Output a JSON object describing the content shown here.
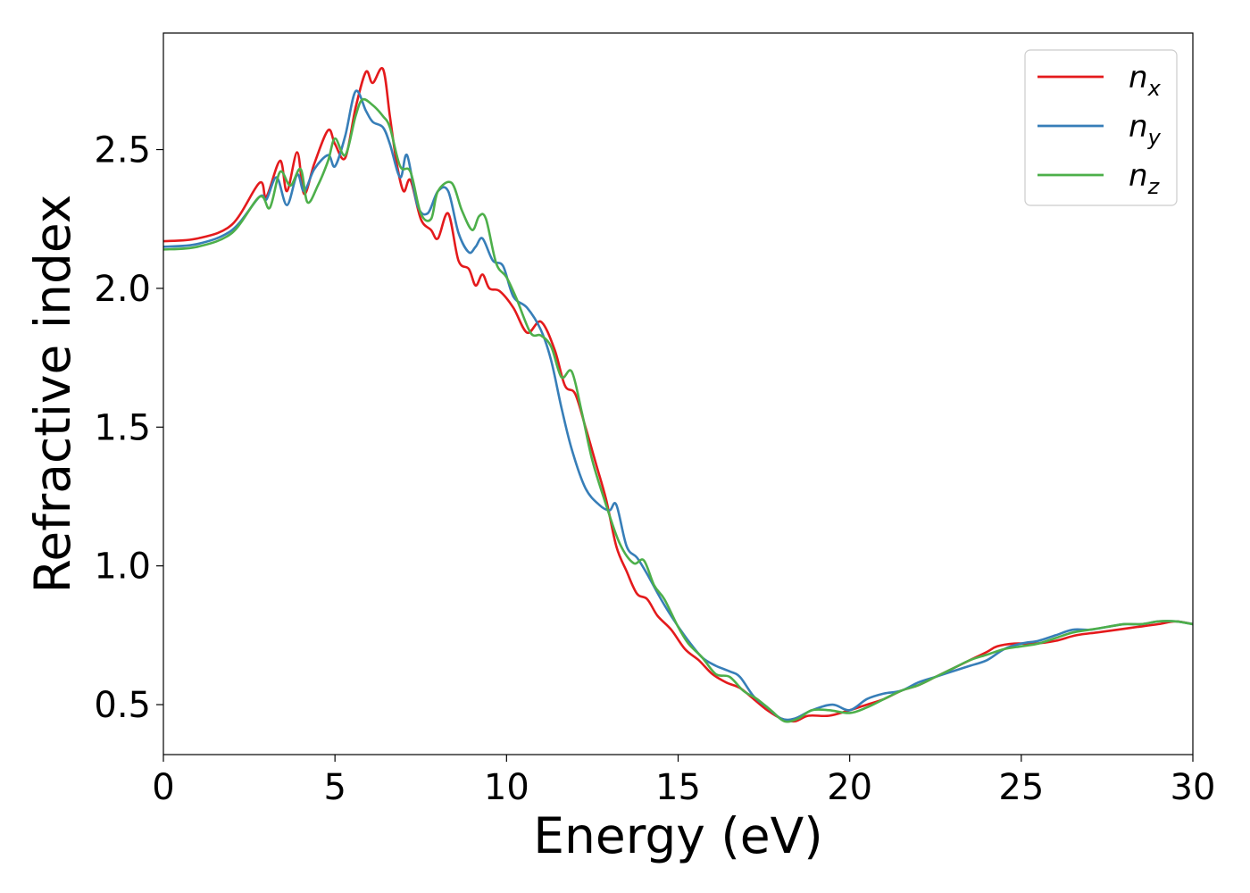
{
  "chart_data": {
    "type": "line",
    "xlabel": "Energy (eV)",
    "ylabel": "Refractive index",
    "xlim": [
      0,
      30
    ],
    "ylim": [
      0.32,
      2.92
    ],
    "xticks": [
      0,
      5,
      10,
      15,
      20,
      25,
      30
    ],
    "xtick_labels": [
      "0",
      "5",
      "10",
      "15",
      "20",
      "25",
      "30"
    ],
    "yticks": [
      0.5,
      1.0,
      1.5,
      2.0,
      2.5
    ],
    "ytick_labels": [
      "0.5",
      "1.0",
      "1.5",
      "2.0",
      "2.5"
    ],
    "legend_position": "top-right",
    "grid": false,
    "series": [
      {
        "name": "n_x",
        "label_base": "n",
        "label_sub": "x",
        "color": "#e41a1c",
        "points": [
          [
            0,
            2.17
          ],
          [
            1,
            2.18
          ],
          [
            2,
            2.23
          ],
          [
            2.8,
            2.38
          ],
          [
            3.0,
            2.33
          ],
          [
            3.4,
            2.46
          ],
          [
            3.6,
            2.35
          ],
          [
            3.9,
            2.49
          ],
          [
            4.1,
            2.34
          ],
          [
            4.4,
            2.45
          ],
          [
            4.8,
            2.57
          ],
          [
            5.0,
            2.52
          ],
          [
            5.3,
            2.47
          ],
          [
            5.6,
            2.65
          ],
          [
            5.9,
            2.78
          ],
          [
            6.1,
            2.74
          ],
          [
            6.4,
            2.79
          ],
          [
            6.6,
            2.62
          ],
          [
            6.8,
            2.45
          ],
          [
            7.0,
            2.35
          ],
          [
            7.2,
            2.39
          ],
          [
            7.5,
            2.25
          ],
          [
            7.8,
            2.21
          ],
          [
            8.0,
            2.18
          ],
          [
            8.3,
            2.27
          ],
          [
            8.6,
            2.1
          ],
          [
            8.9,
            2.07
          ],
          [
            9.1,
            2.01
          ],
          [
            9.3,
            2.05
          ],
          [
            9.5,
            2.0
          ],
          [
            9.8,
            1.99
          ],
          [
            10.2,
            1.93
          ],
          [
            10.6,
            1.84
          ],
          [
            11.0,
            1.88
          ],
          [
            11.4,
            1.78
          ],
          [
            11.7,
            1.65
          ],
          [
            12.0,
            1.62
          ],
          [
            12.3,
            1.5
          ],
          [
            12.6,
            1.37
          ],
          [
            12.9,
            1.24
          ],
          [
            13.2,
            1.07
          ],
          [
            13.5,
            0.98
          ],
          [
            13.8,
            0.9
          ],
          [
            14.1,
            0.88
          ],
          [
            14.4,
            0.82
          ],
          [
            14.8,
            0.77
          ],
          [
            15.2,
            0.7
          ],
          [
            15.6,
            0.66
          ],
          [
            16.0,
            0.61
          ],
          [
            16.4,
            0.58
          ],
          [
            16.8,
            0.56
          ],
          [
            17.2,
            0.52
          ],
          [
            17.6,
            0.48
          ],
          [
            18.0,
            0.45
          ],
          [
            18.4,
            0.44
          ],
          [
            18.8,
            0.46
          ],
          [
            19.4,
            0.46
          ],
          [
            20.0,
            0.48
          ],
          [
            20.5,
            0.5
          ],
          [
            21.0,
            0.52
          ],
          [
            21.5,
            0.55
          ],
          [
            22.0,
            0.57
          ],
          [
            22.5,
            0.6
          ],
          [
            23.0,
            0.63
          ],
          [
            23.5,
            0.66
          ],
          [
            24.0,
            0.69
          ],
          [
            24.3,
            0.71
          ],
          [
            24.8,
            0.72
          ],
          [
            25.4,
            0.72
          ],
          [
            26.0,
            0.73
          ],
          [
            26.6,
            0.75
          ],
          [
            27.2,
            0.76
          ],
          [
            27.8,
            0.77
          ],
          [
            28.4,
            0.78
          ],
          [
            29.0,
            0.79
          ],
          [
            29.5,
            0.8
          ],
          [
            30.0,
            0.79
          ]
        ]
      },
      {
        "name": "n_y",
        "label_base": "n",
        "label_sub": "y",
        "color": "#377eb8",
        "points": [
          [
            0,
            2.15
          ],
          [
            1,
            2.16
          ],
          [
            2,
            2.21
          ],
          [
            2.8,
            2.33
          ],
          [
            3.0,
            2.32
          ],
          [
            3.3,
            2.4
          ],
          [
            3.6,
            2.3
          ],
          [
            3.9,
            2.41
          ],
          [
            4.1,
            2.35
          ],
          [
            4.4,
            2.43
          ],
          [
            4.8,
            2.48
          ],
          [
            5.0,
            2.44
          ],
          [
            5.3,
            2.55
          ],
          [
            5.6,
            2.71
          ],
          [
            5.9,
            2.64
          ],
          [
            6.1,
            2.6
          ],
          [
            6.4,
            2.58
          ],
          [
            6.6,
            2.52
          ],
          [
            6.9,
            2.4
          ],
          [
            7.1,
            2.48
          ],
          [
            7.4,
            2.3
          ],
          [
            7.7,
            2.27
          ],
          [
            8.0,
            2.35
          ],
          [
            8.3,
            2.35
          ],
          [
            8.6,
            2.2
          ],
          [
            8.9,
            2.13
          ],
          [
            9.1,
            2.15
          ],
          [
            9.3,
            2.18
          ],
          [
            9.6,
            2.1
          ],
          [
            9.9,
            2.08
          ],
          [
            10.2,
            1.97
          ],
          [
            10.6,
            1.93
          ],
          [
            11.0,
            1.85
          ],
          [
            11.3,
            1.74
          ],
          [
            11.6,
            1.57
          ],
          [
            11.9,
            1.42
          ],
          [
            12.3,
            1.28
          ],
          [
            12.7,
            1.22
          ],
          [
            13.0,
            1.2
          ],
          [
            13.2,
            1.22
          ],
          [
            13.5,
            1.07
          ],
          [
            13.8,
            1.03
          ],
          [
            14.1,
            0.97
          ],
          [
            14.5,
            0.88
          ],
          [
            14.9,
            0.8
          ],
          [
            15.3,
            0.73
          ],
          [
            15.7,
            0.67
          ],
          [
            16.1,
            0.64
          ],
          [
            16.5,
            0.62
          ],
          [
            16.8,
            0.6
          ],
          [
            17.2,
            0.53
          ],
          [
            17.6,
            0.49
          ],
          [
            18.0,
            0.45
          ],
          [
            18.4,
            0.45
          ],
          [
            18.9,
            0.48
          ],
          [
            19.5,
            0.5
          ],
          [
            20.0,
            0.48
          ],
          [
            20.5,
            0.52
          ],
          [
            21.0,
            0.54
          ],
          [
            21.5,
            0.55
          ],
          [
            22.0,
            0.58
          ],
          [
            22.5,
            0.6
          ],
          [
            23.0,
            0.62
          ],
          [
            23.5,
            0.64
          ],
          [
            24.0,
            0.66
          ],
          [
            24.5,
            0.7
          ],
          [
            25.0,
            0.72
          ],
          [
            25.5,
            0.73
          ],
          [
            26.0,
            0.75
          ],
          [
            26.5,
            0.77
          ],
          [
            27.0,
            0.77
          ],
          [
            27.5,
            0.78
          ],
          [
            28.0,
            0.79
          ],
          [
            28.5,
            0.79
          ],
          [
            29.0,
            0.8
          ],
          [
            29.5,
            0.8
          ],
          [
            30.0,
            0.79
          ]
        ]
      },
      {
        "name": "n_z",
        "label_base": "n",
        "label_sub": "z",
        "color": "#4daf4a",
        "points": [
          [
            0,
            2.14
          ],
          [
            1,
            2.15
          ],
          [
            2,
            2.2
          ],
          [
            2.8,
            2.33
          ],
          [
            3.1,
            2.29
          ],
          [
            3.4,
            2.42
          ],
          [
            3.7,
            2.37
          ],
          [
            4.0,
            2.43
          ],
          [
            4.2,
            2.31
          ],
          [
            4.5,
            2.37
          ],
          [
            4.8,
            2.46
          ],
          [
            5.0,
            2.54
          ],
          [
            5.3,
            2.48
          ],
          [
            5.6,
            2.62
          ],
          [
            5.8,
            2.68
          ],
          [
            6.1,
            2.66
          ],
          [
            6.4,
            2.62
          ],
          [
            6.6,
            2.58
          ],
          [
            6.9,
            2.44
          ],
          [
            7.2,
            2.42
          ],
          [
            7.5,
            2.27
          ],
          [
            7.8,
            2.25
          ],
          [
            8.0,
            2.35
          ],
          [
            8.4,
            2.38
          ],
          [
            8.7,
            2.28
          ],
          [
            9.0,
            2.21
          ],
          [
            9.2,
            2.26
          ],
          [
            9.4,
            2.25
          ],
          [
            9.7,
            2.09
          ],
          [
            10.0,
            2.04
          ],
          [
            10.3,
            1.96
          ],
          [
            10.7,
            1.84
          ],
          [
            11.0,
            1.83
          ],
          [
            11.3,
            1.79
          ],
          [
            11.6,
            1.68
          ],
          [
            11.9,
            1.7
          ],
          [
            12.2,
            1.55
          ],
          [
            12.5,
            1.38
          ],
          [
            12.9,
            1.22
          ],
          [
            13.3,
            1.08
          ],
          [
            13.7,
            1.01
          ],
          [
            14.0,
            1.02
          ],
          [
            14.3,
            0.93
          ],
          [
            14.6,
            0.88
          ],
          [
            15.0,
            0.78
          ],
          [
            15.3,
            0.72
          ],
          [
            15.7,
            0.67
          ],
          [
            16.1,
            0.61
          ],
          [
            16.5,
            0.6
          ],
          [
            16.9,
            0.55
          ],
          [
            17.3,
            0.52
          ],
          [
            17.7,
            0.48
          ],
          [
            18.1,
            0.44
          ],
          [
            18.5,
            0.45
          ],
          [
            18.9,
            0.48
          ],
          [
            19.4,
            0.48
          ],
          [
            20.0,
            0.47
          ],
          [
            20.5,
            0.49
          ],
          [
            21.0,
            0.52
          ],
          [
            21.5,
            0.55
          ],
          [
            22.0,
            0.57
          ],
          [
            22.5,
            0.6
          ],
          [
            23.0,
            0.63
          ],
          [
            23.5,
            0.66
          ],
          [
            24.0,
            0.68
          ],
          [
            24.5,
            0.7
          ],
          [
            25.0,
            0.71
          ],
          [
            25.5,
            0.72
          ],
          [
            26.0,
            0.74
          ],
          [
            26.5,
            0.76
          ],
          [
            27.0,
            0.77
          ],
          [
            27.5,
            0.78
          ],
          [
            28.0,
            0.79
          ],
          [
            28.5,
            0.79
          ],
          [
            29.0,
            0.8
          ],
          [
            29.5,
            0.8
          ],
          [
            30.0,
            0.79
          ]
        ]
      }
    ]
  }
}
